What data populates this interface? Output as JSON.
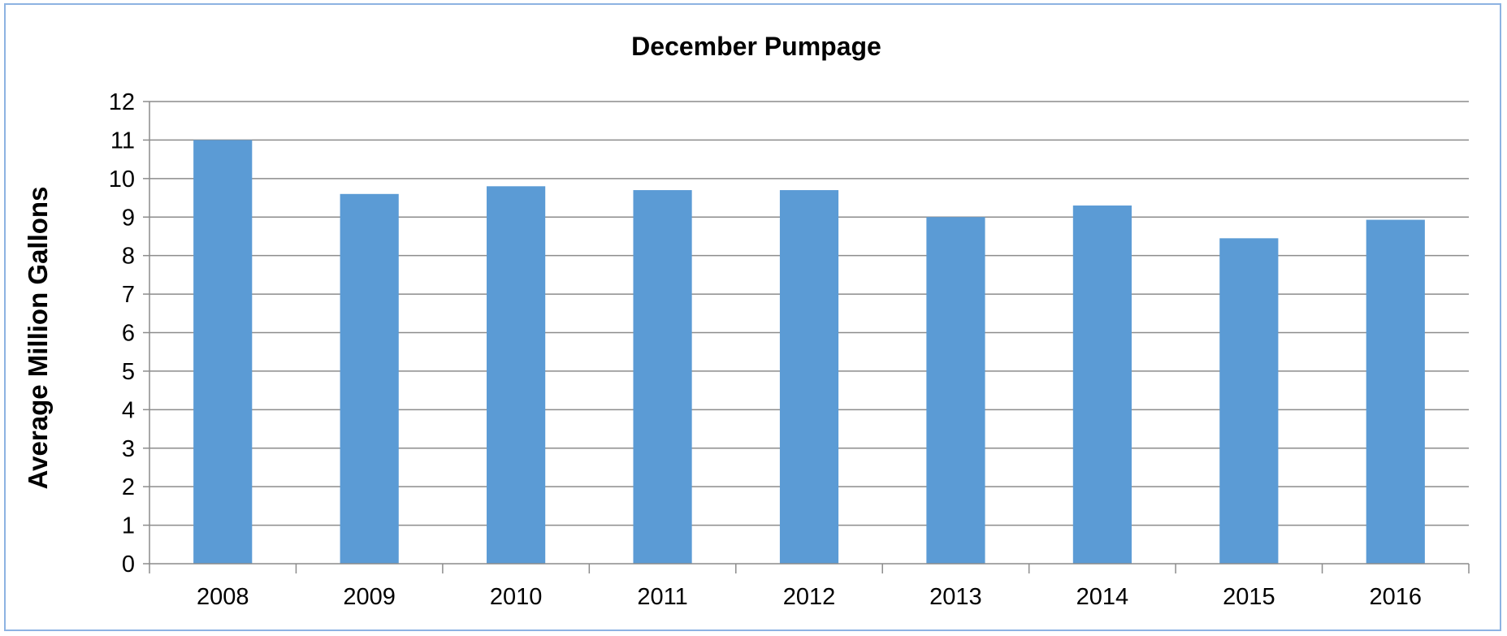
{
  "chart_data": {
    "type": "bar",
    "title": "December Pumpage",
    "xlabel": "",
    "ylabel": "Average Million Gallons",
    "categories": [
      "2008",
      "2009",
      "2010",
      "2011",
      "2012",
      "2013",
      "2014",
      "2015",
      "2016"
    ],
    "values": [
      11.0,
      9.6,
      9.8,
      9.7,
      9.7,
      9.0,
      9.3,
      8.45,
      8.93
    ],
    "ylim": [
      0,
      12
    ],
    "yticks": [
      0,
      1,
      2,
      3,
      4,
      5,
      6,
      7,
      8,
      9,
      10,
      11,
      12
    ],
    "grid": "horizontal",
    "legend": "none",
    "colors": {
      "bar": "#5b9bd5",
      "grid": "#8c8c8c",
      "frame_border": "#8db3e2"
    }
  }
}
